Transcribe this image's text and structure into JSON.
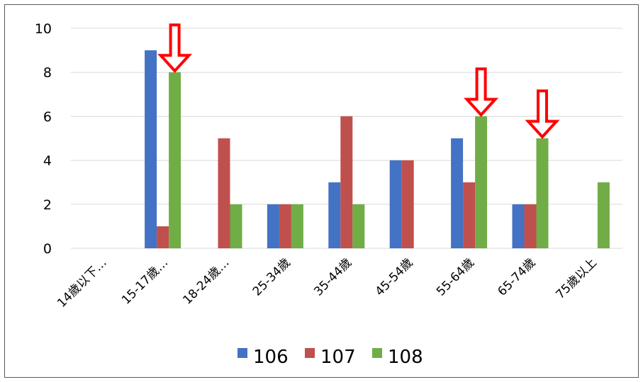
{
  "chart_data": {
    "type": "bar",
    "categories": [
      "14歲以下…",
      "15-17歲…",
      "18-24歲…",
      "25-34歲",
      "35-44歲",
      "45-54歲",
      "55-64歲",
      "65-74歲",
      "75歲以上"
    ],
    "series": [
      {
        "name": "106",
        "color": "#4472C4",
        "values": [
          0,
          9,
          0,
          2,
          3,
          4,
          5,
          2,
          0
        ]
      },
      {
        "name": "107",
        "color": "#C0504D",
        "values": [
          0,
          1,
          5,
          2,
          6,
          4,
          3,
          2,
          0
        ]
      },
      {
        "name": "108",
        "color": "#70AD47",
        "values": [
          0,
          8,
          2,
          2,
          2,
          0,
          6,
          5,
          3
        ]
      }
    ],
    "ylim": [
      0,
      10
    ],
    "yticks": [
      0,
      2,
      4,
      6,
      8,
      10
    ],
    "grid": true,
    "legend": "bottom",
    "annotations": [
      {
        "type": "down-arrow",
        "color": "#FF0000",
        "category": "15-17歲…",
        "series": "108"
      },
      {
        "type": "down-arrow",
        "color": "#FF0000",
        "category": "55-64歲",
        "series": "108"
      },
      {
        "type": "down-arrow",
        "color": "#FF0000",
        "category": "65-74歲",
        "series": "108"
      }
    ]
  }
}
